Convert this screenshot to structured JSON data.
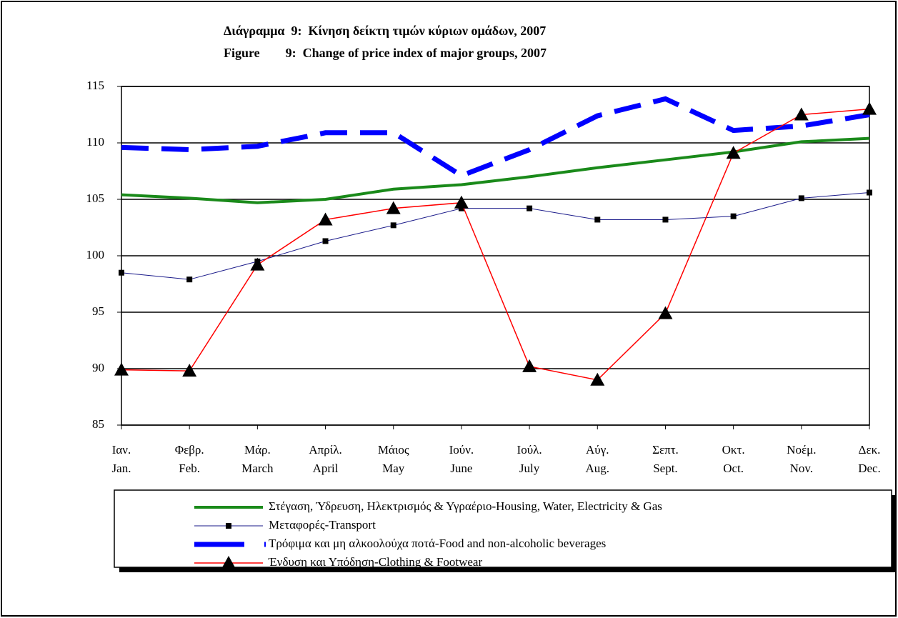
{
  "chart_data": {
    "type": "line",
    "title": "Διάγραμμα  9:  Κίνηση δείκτη τιμών κύριων ομάδων, 2007",
    "subtitle": "Figure        9:  Change of price index of major groups, 2007",
    "categories": [
      [
        "Ιαν.",
        "Jan."
      ],
      [
        "Φεβρ.",
        "Feb."
      ],
      [
        "Μάρ.",
        "March"
      ],
      [
        "Απρίλ.",
        "April"
      ],
      [
        "Μάιος",
        "May"
      ],
      [
        "Ιούν.",
        "June"
      ],
      [
        "Ιούλ.",
        "July"
      ],
      [
        "Αύγ.",
        "Aug."
      ],
      [
        "Σεπτ.",
        "Sept."
      ],
      [
        "Οκτ.",
        "Oct."
      ],
      [
        "Νοέμ.",
        "Nov."
      ],
      [
        "Δεκ.",
        "Dec."
      ]
    ],
    "ylim": [
      85,
      115
    ],
    "yticks": [
      85,
      90,
      95,
      100,
      105,
      110,
      115
    ],
    "grid": true,
    "series": [
      {
        "name": "Στέγαση, Ύδρευση, Ηλεκτρισμός & Υγραέριο-Housing, Water, Electricity & Gas",
        "color": "#1a8a1a",
        "width": 4,
        "values": [
          105.4,
          105.1,
          104.7,
          105.0,
          105.9,
          106.3,
          107.0,
          107.8,
          108.5,
          109.2,
          110.1,
          110.4
        ]
      },
      {
        "name": "Μεταφορές-Transport",
        "color": "#1a1a8a",
        "width": 1,
        "marker": "square",
        "values": [
          98.5,
          97.9,
          99.5,
          101.3,
          102.7,
          104.2,
          104.2,
          103.2,
          103.2,
          103.5,
          105.1,
          105.6
        ]
      },
      {
        "name": "Τρόφιμα και μη αλκοολούχα ποτά-Food and non-alcoholic beverages",
        "color": "#0000ff",
        "width": 7,
        "line_style": "dashed",
        "values": [
          109.6,
          109.4,
          109.7,
          110.9,
          110.9,
          107.1,
          109.4,
          112.4,
          113.9,
          111.1,
          111.5,
          112.5
        ]
      },
      {
        "name": "Ένδυση και Υπόδηση-Clothing & Footwear",
        "color": "#ff0000",
        "width": 1.5,
        "marker": "triangle",
        "values": [
          89.9,
          89.8,
          99.2,
          103.2,
          104.2,
          104.7,
          90.2,
          89.0,
          94.9,
          109.1,
          112.5,
          113.0
        ]
      }
    ]
  }
}
